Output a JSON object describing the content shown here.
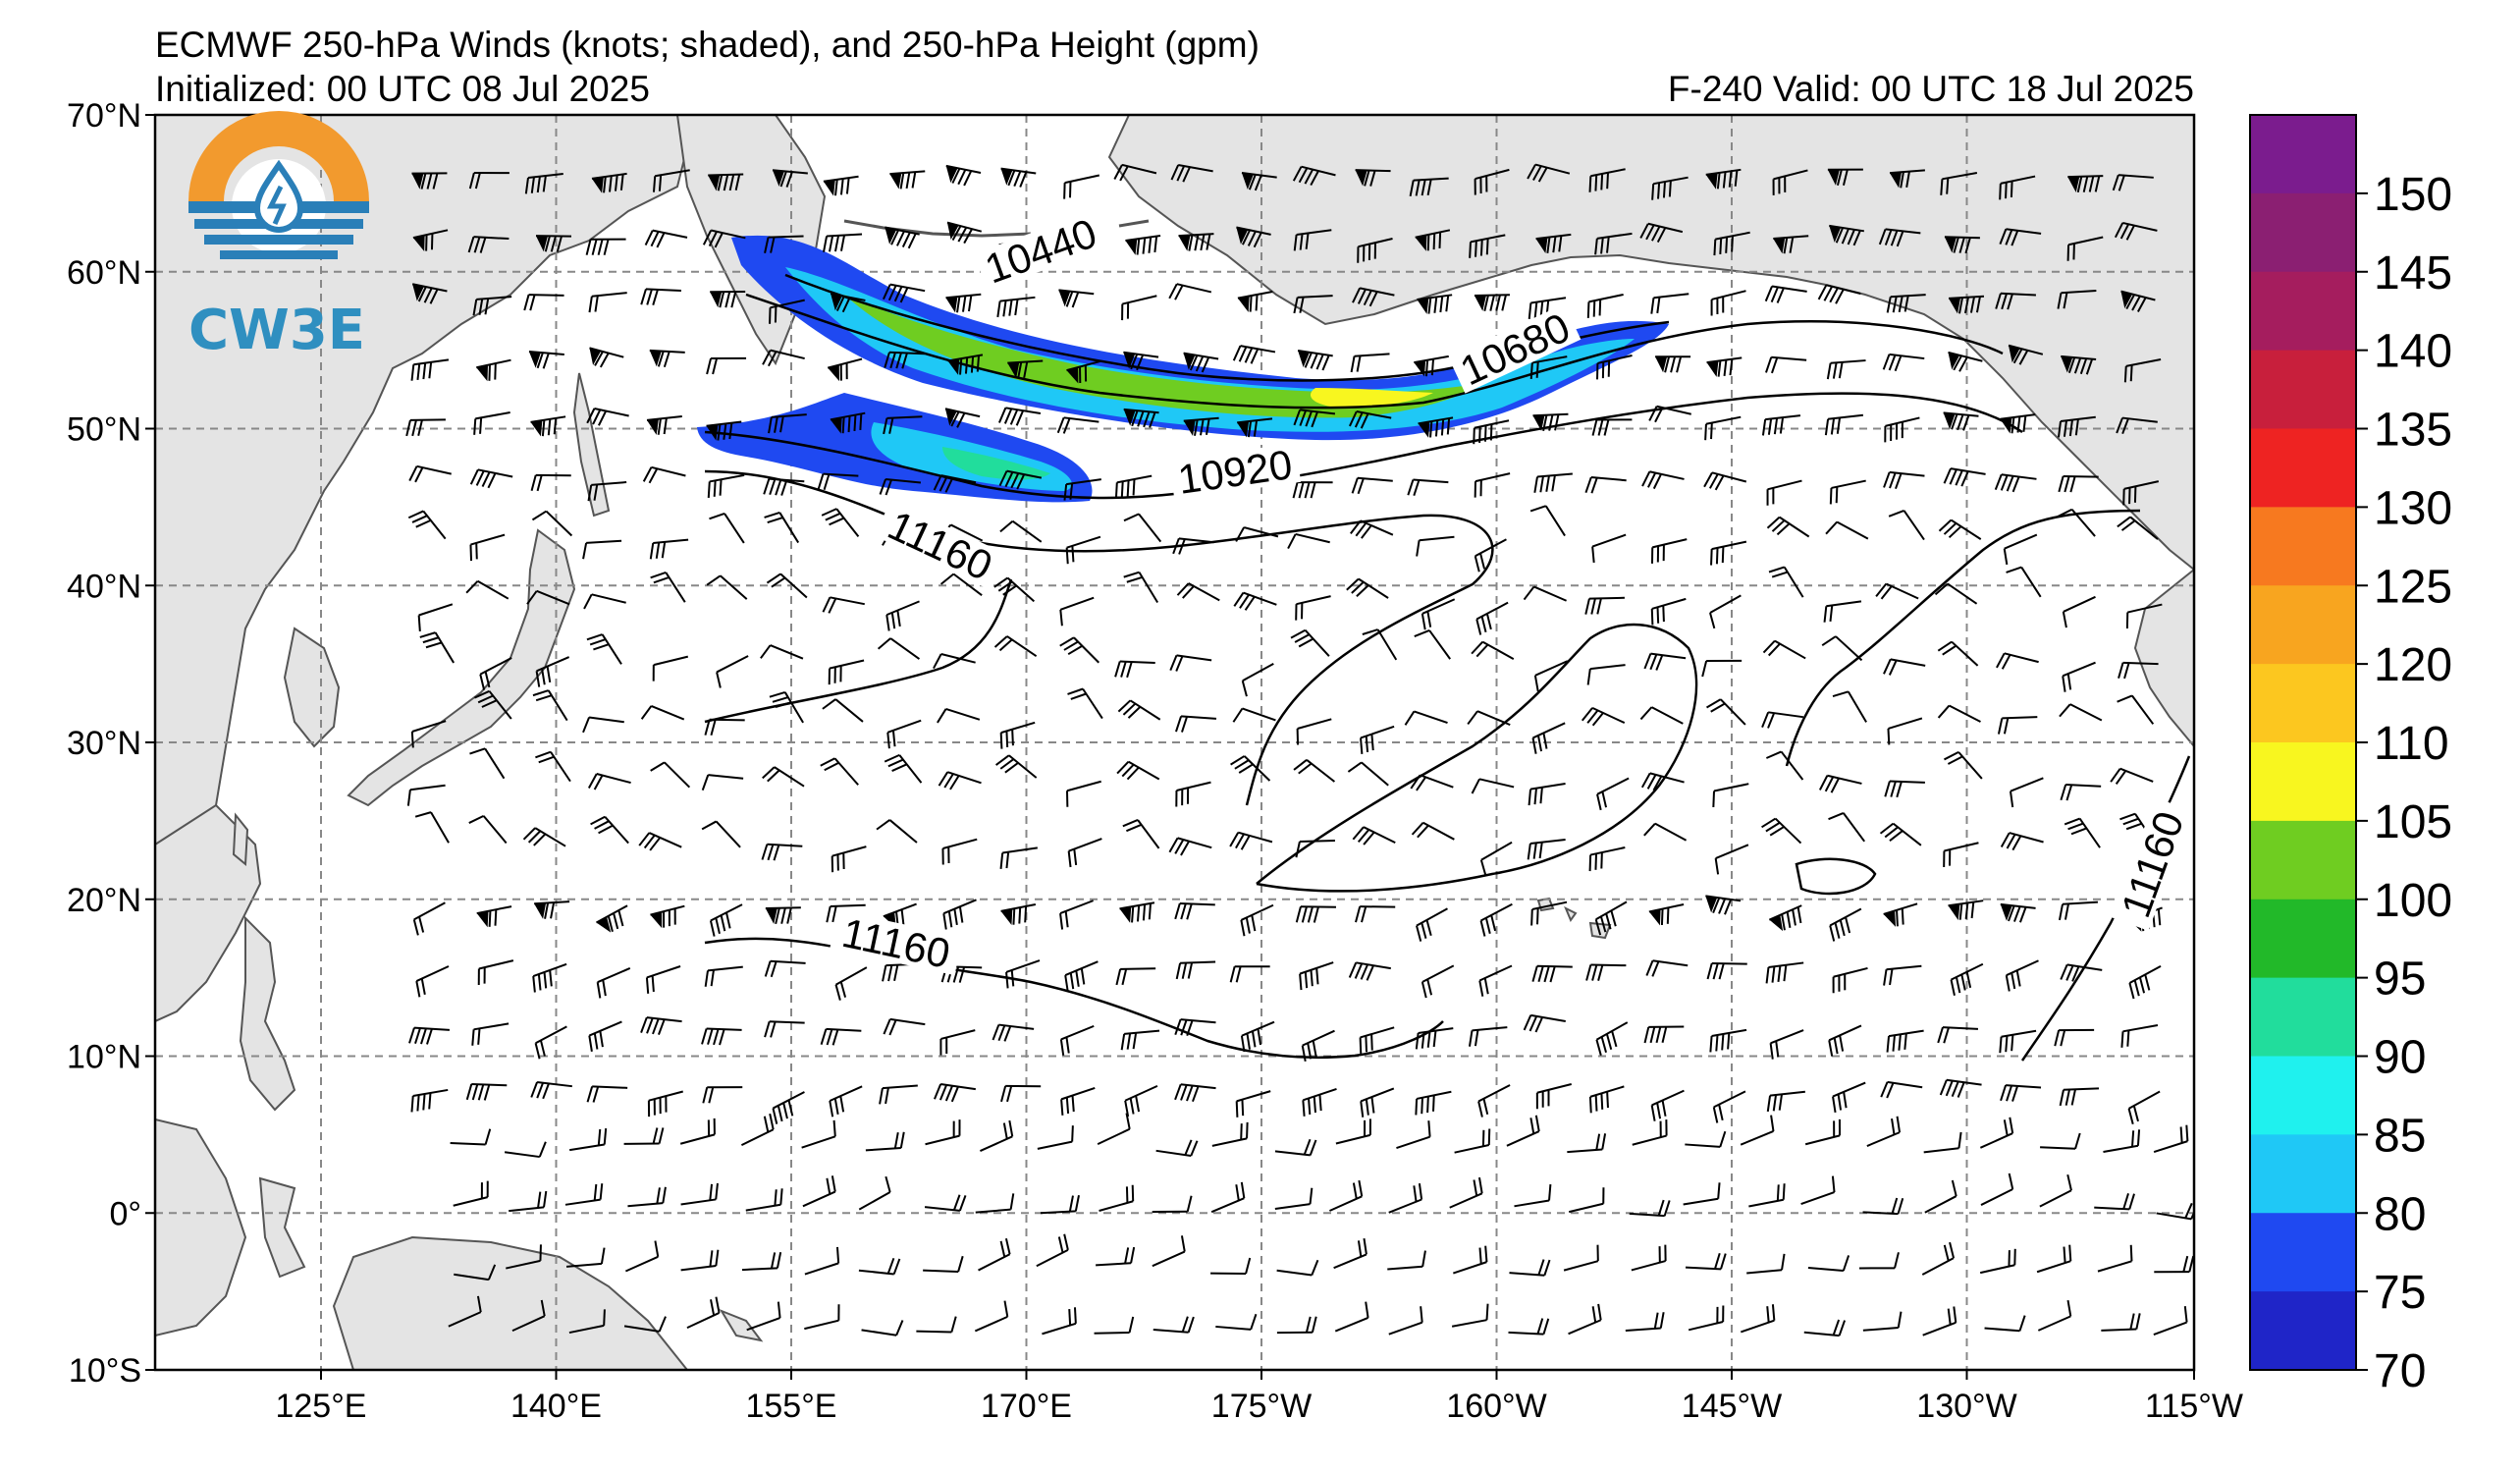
{
  "title": "ECMWF 250-hPa Winds (knots; shaded), and 250-hPa Height (gpm)",
  "initialized": "Initialized: 00 UTC 08 Jul 2025",
  "valid": "F-240  Valid: 00 UTC 18 Jul 2025",
  "logo": {
    "text": "CW3E",
    "icon": "water-drop-sun-logo-icon"
  },
  "axes": {
    "lat_labels": [
      "70°N",
      "60°N",
      "50°N",
      "40°N",
      "30°N",
      "20°N",
      "10°N",
      "0°",
      "10°S"
    ],
    "lon_labels": [
      "125°E",
      "140°E",
      "155°E",
      "170°E",
      "175°W",
      "160°W",
      "145°W",
      "130°W",
      "115°W"
    ]
  },
  "colorbar": {
    "labels": [
      "150",
      "145",
      "140",
      "135",
      "130",
      "125",
      "120",
      "110",
      "105",
      "100",
      "95",
      "90",
      "85",
      "80",
      "75",
      "70"
    ],
    "colors": [
      "#7b1c8e",
      "#8b1f72",
      "#a51d5e",
      "#c81f3c",
      "#ee2322",
      "#f7791f",
      "#f8a51f",
      "#fcc71f",
      "#f8f61f",
      "#6fcd21",
      "#22b929",
      "#21dd9c",
      "#1ff1ee",
      "#1fc8f6",
      "#1f49f1",
      "#1f25c8"
    ]
  },
  "contour_labels": [
    "10440",
    "10680",
    "10920",
    "11160",
    "11160",
    "11160"
  ],
  "colors": {
    "land": "#e4e4e4",
    "coast": "#555555",
    "grid": "#888888",
    "contour": "#000000",
    "jet_outer": "#1f49f1",
    "jet_mid": "#1fc8f6",
    "jet_core": "#6fcd21",
    "jet_max": "#f8f61f"
  }
}
